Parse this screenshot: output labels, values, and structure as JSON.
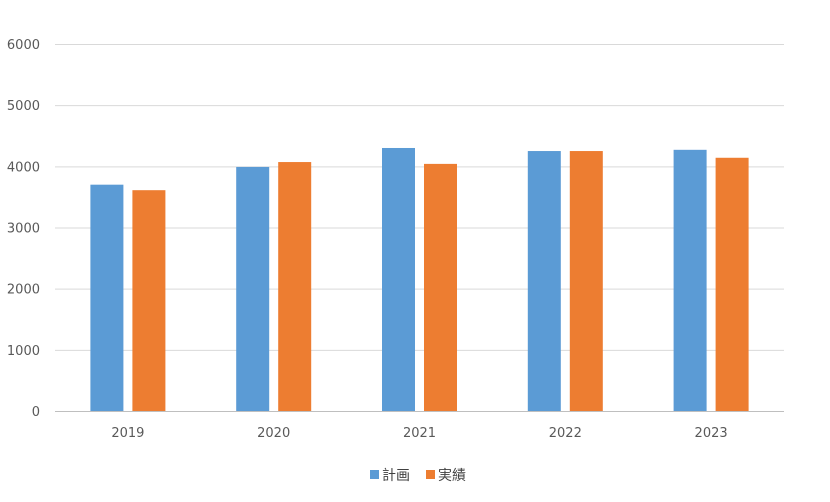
{
  "chart_data": {
    "type": "bar",
    "title": "",
    "xlabel": "",
    "ylabel": "",
    "categories": [
      "2019",
      "2020",
      "2021",
      "2022",
      "2023"
    ],
    "series": [
      {
        "name": "計画",
        "color": "#5b9bd5",
        "values": [
          3700,
          3990,
          4300,
          4250,
          4270
        ]
      },
      {
        "name": "実績",
        "color": "#ed7d31",
        "values": [
          3610,
          4070,
          4040,
          4250,
          4140
        ]
      }
    ],
    "ylim": [
      0,
      6000
    ],
    "yticks": [
      "0",
      "1000",
      "2000",
      "3000",
      "4000",
      "5000",
      "6000"
    ],
    "grid": true,
    "legend_position": "bottom"
  }
}
